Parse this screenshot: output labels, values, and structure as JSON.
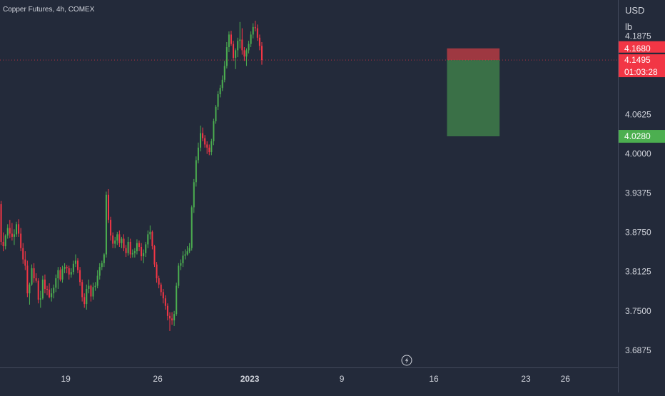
{
  "symbol_title": "Copper Futures, 4h, COMEX",
  "currency": "USD",
  "unit": "lb",
  "colors": {
    "background": "#232a3a",
    "up": "#4caf50",
    "down": "#f23645",
    "axis_text": "#d1d4dc",
    "grid": "#2c3345",
    "stop_zone": "#b43b43",
    "target_zone": "#3e7d4a"
  },
  "badges": {
    "stop": {
      "value": 4.168,
      "label": "4.1680"
    },
    "last": {
      "value": 4.1495,
      "label": "4.1495"
    },
    "countdown": "01:03:28",
    "target": {
      "value": 4.028,
      "label": "4.0280"
    }
  },
  "position": {
    "entry": 4.1495,
    "stop": 4.168,
    "target": 4.028,
    "start_date": "2023-01-17",
    "end_date": "2023-01-21"
  },
  "chart_data": {
    "type": "candlestick",
    "title": "Copper Futures, 4h, COMEX",
    "ylabel": "USD lb",
    "ylim": [
      3.66,
      4.245
    ],
    "y_ticks": [
      "4.1875",
      "4.0625",
      "4.0000",
      "3.9375",
      "3.8750",
      "3.8125",
      "3.7500",
      "3.6875"
    ],
    "x_ticks": [
      "19",
      "26",
      "2023",
      "9",
      "16",
      "23",
      "26"
    ],
    "xlim": [
      "2022-12-14",
      "2023-01-30"
    ],
    "candles_per_day": 6,
    "grid": false,
    "series": [
      {
        "start": "2022-12-14",
        "open": [
          3.92,
          3.86,
          3.853,
          3.87,
          3.882,
          3.873,
          3.868,
          3.872,
          3.888,
          3.873,
          3.85,
          3.832,
          3.822,
          3.778,
          3.792,
          3.818,
          3.802,
          3.798,
          3.768,
          3.77,
          3.8,
          3.785,
          3.784,
          3.772,
          3.778,
          3.787,
          3.802,
          3.815,
          3.8,
          3.817,
          3.82,
          3.818,
          3.808,
          3.812,
          3.825,
          3.83,
          3.815,
          3.796,
          3.772,
          3.761,
          3.785,
          3.79,
          3.773,
          3.788,
          3.79,
          3.806,
          3.82,
          3.826,
          3.84,
          3.935,
          3.895,
          3.87,
          3.857,
          3.862,
          3.872,
          3.858,
          3.865,
          3.85,
          3.842,
          3.86,
          3.84,
          3.842,
          3.845,
          3.858,
          3.852,
          3.837,
          3.842,
          3.856,
          3.872,
          3.876,
          3.853,
          3.824,
          3.802,
          3.792,
          3.78,
          3.77,
          3.758,
          3.742,
          3.738,
          3.735,
          3.745,
          3.79,
          3.822,
          3.826,
          3.838,
          3.84,
          3.845,
          3.85,
          3.915,
          3.955,
          3.99,
          4.01,
          4.033,
          4.025,
          4.015,
          4.01,
          4.003,
          4.02,
          4.052,
          4.075,
          4.095,
          4.105,
          4.118,
          4.14,
          4.17,
          4.19,
          4.175,
          4.153,
          4.165,
          4.18,
          4.182,
          4.165,
          4.155,
          4.165,
          4.175,
          4.19,
          4.202,
          4.2,
          4.185,
          4.172
        ],
        "high": [
          3.925,
          3.875,
          3.872,
          3.888,
          3.895,
          3.89,
          3.88,
          3.892,
          3.896,
          3.882,
          3.858,
          3.845,
          3.83,
          3.795,
          3.824,
          3.826,
          3.81,
          3.802,
          3.782,
          3.806,
          3.808,
          3.79,
          3.794,
          3.786,
          3.792,
          3.808,
          3.82,
          3.82,
          3.822,
          3.826,
          3.823,
          3.822,
          3.818,
          3.83,
          3.84,
          3.834,
          3.82,
          3.8,
          3.778,
          3.792,
          3.8,
          3.792,
          3.795,
          3.796,
          3.815,
          3.826,
          3.83,
          3.842,
          3.94,
          3.944,
          3.9,
          3.875,
          3.868,
          3.876,
          3.878,
          3.868,
          3.872,
          3.855,
          3.868,
          3.865,
          3.848,
          3.85,
          3.864,
          3.862,
          3.858,
          3.848,
          3.86,
          3.878,
          3.886,
          3.878,
          3.855,
          3.828,
          3.806,
          3.795,
          3.785,
          3.775,
          3.762,
          3.748,
          3.748,
          3.75,
          3.795,
          3.826,
          3.832,
          3.845,
          3.848,
          3.853,
          3.858,
          3.918,
          3.96,
          3.996,
          4.018,
          4.045,
          4.042,
          4.03,
          4.02,
          4.015,
          4.024,
          4.056,
          4.078,
          4.1,
          4.11,
          4.125,
          4.148,
          4.178,
          4.195,
          4.196,
          4.18,
          4.168,
          4.185,
          4.21,
          4.2,
          4.17,
          4.168,
          4.18,
          4.195,
          4.208,
          4.212,
          4.206,
          4.19,
          4.178
        ],
        "low": [
          3.855,
          3.845,
          3.848,
          3.865,
          3.866,
          3.862,
          3.855,
          3.868,
          3.868,
          3.845,
          3.825,
          3.815,
          3.772,
          3.76,
          3.79,
          3.795,
          3.795,
          3.762,
          3.755,
          3.768,
          3.778,
          3.775,
          3.77,
          3.765,
          3.77,
          3.78,
          3.785,
          3.797,
          3.795,
          3.81,
          3.81,
          3.8,
          3.803,
          3.808,
          3.82,
          3.81,
          3.79,
          3.765,
          3.755,
          3.752,
          3.778,
          3.765,
          3.768,
          3.782,
          3.786,
          3.8,
          3.815,
          3.82,
          3.835,
          3.89,
          3.862,
          3.85,
          3.85,
          3.855,
          3.852,
          3.85,
          3.845,
          3.836,
          3.838,
          3.834,
          3.835,
          3.835,
          3.84,
          3.845,
          3.83,
          3.826,
          3.836,
          3.85,
          3.864,
          3.848,
          3.82,
          3.795,
          3.786,
          3.774,
          3.762,
          3.752,
          3.735,
          3.718,
          3.728,
          3.726,
          3.742,
          3.786,
          3.815,
          3.82,
          3.832,
          3.838,
          3.842,
          3.846,
          3.906,
          3.948,
          3.985,
          4.004,
          4.02,
          4.01,
          4.0,
          3.998,
          3.998,
          4.014,
          4.048,
          4.07,
          4.09,
          4.1,
          4.114,
          4.136,
          4.162,
          4.172,
          4.148,
          4.135,
          4.154,
          4.168,
          4.158,
          4.148,
          4.14,
          4.16,
          4.17,
          4.184,
          4.195,
          4.18,
          4.165,
          4.142
        ],
        "close": [
          3.86,
          3.853,
          3.87,
          3.882,
          3.873,
          3.868,
          3.872,
          3.888,
          3.873,
          3.85,
          3.832,
          3.822,
          3.778,
          3.792,
          3.818,
          3.802,
          3.798,
          3.768,
          3.77,
          3.8,
          3.785,
          3.784,
          3.772,
          3.778,
          3.787,
          3.802,
          3.815,
          3.8,
          3.817,
          3.82,
          3.818,
          3.808,
          3.812,
          3.825,
          3.83,
          3.815,
          3.796,
          3.772,
          3.761,
          3.785,
          3.79,
          3.773,
          3.788,
          3.79,
          3.806,
          3.82,
          3.826,
          3.84,
          3.935,
          3.895,
          3.87,
          3.857,
          3.862,
          3.872,
          3.858,
          3.865,
          3.85,
          3.842,
          3.86,
          3.84,
          3.842,
          3.845,
          3.858,
          3.852,
          3.837,
          3.842,
          3.856,
          3.872,
          3.876,
          3.853,
          3.824,
          3.802,
          3.792,
          3.78,
          3.77,
          3.758,
          3.742,
          3.738,
          3.735,
          3.745,
          3.79,
          3.822,
          3.826,
          3.838,
          3.84,
          3.845,
          3.85,
          3.915,
          3.955,
          3.99,
          4.01,
          4.033,
          4.025,
          4.015,
          4.01,
          4.003,
          4.02,
          4.052,
          4.075,
          4.095,
          4.105,
          4.118,
          4.14,
          4.17,
          4.19,
          4.175,
          4.153,
          4.165,
          4.18,
          4.182,
          4.165,
          4.155,
          4.165,
          4.175,
          4.19,
          4.202,
          4.2,
          4.185,
          4.172,
          4.1495
        ]
      }
    ]
  }
}
